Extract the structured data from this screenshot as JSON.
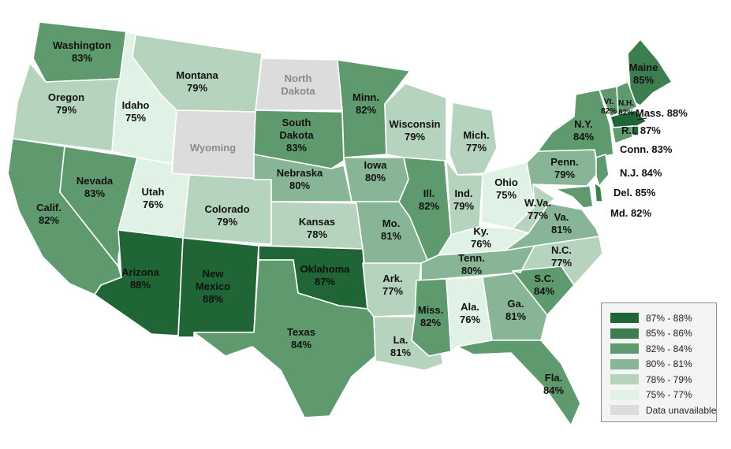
{
  "colors": {
    "c87_88": "#1f6535",
    "c85_86": "#3c7e4f",
    "c82_84": "#5f9a6e",
    "c80_81": "#88b595",
    "c78_79": "#b6d3bd",
    "c75_77": "#e0f1e6",
    "na": "#dcdcdc"
  },
  "legend": [
    {
      "label": "87% - 88%",
      "color": "#1f6535"
    },
    {
      "label": "85% - 86%",
      "color": "#3c7e4f"
    },
    {
      "label": "82% - 84%",
      "color": "#5f9a6e"
    },
    {
      "label": "80% - 81%",
      "color": "#88b595"
    },
    {
      "label": "78% - 79%",
      "color": "#b6d3bd"
    },
    {
      "label": "75% - 77%",
      "color": "#e0f1e6"
    },
    {
      "label": "Data unavailable",
      "color": "#dcdcdc"
    }
  ],
  "states": {
    "wa": {
      "name": "Washington",
      "value": "83%"
    },
    "or": {
      "name": "Oregon",
      "value": "79%"
    },
    "ca": {
      "name": "Calif.",
      "value": "82%"
    },
    "nv": {
      "name": "Nevada",
      "value": "83%"
    },
    "id": {
      "name": "Idaho",
      "value": "75%"
    },
    "mt": {
      "name": "Montana",
      "value": "79%"
    },
    "wy": {
      "name": "Wyoming",
      "value": ""
    },
    "ut": {
      "name": "Utah",
      "value": "76%"
    },
    "co": {
      "name": "Colorado",
      "value": "79%"
    },
    "az": {
      "name": "Arizona",
      "value": "88%"
    },
    "nm": {
      "name": "New Mexico",
      "name1": "New",
      "name2": "Mexico",
      "value": "88%"
    },
    "nd": {
      "name": "North Dakota",
      "name1": "North",
      "name2": "Dakota",
      "value": ""
    },
    "sd": {
      "name": "South Dakota",
      "name1": "South",
      "name2": "Dakota",
      "value": "83%"
    },
    "ne": {
      "name": "Nebraska",
      "value": "80%"
    },
    "ks": {
      "name": "Kansas",
      "value": "78%"
    },
    "ok": {
      "name": "Oklahoma",
      "value": "87%"
    },
    "tx": {
      "name": "Texas",
      "value": "84%"
    },
    "mn": {
      "name": "Minn.",
      "value": "82%"
    },
    "ia": {
      "name": "Iowa",
      "value": "80%"
    },
    "mo": {
      "name": "Mo.",
      "value": "81%"
    },
    "ar": {
      "name": "Ark.",
      "value": "77%"
    },
    "la": {
      "name": "La.",
      "value": "81%"
    },
    "wi": {
      "name": "Wisconsin",
      "value": "79%"
    },
    "il": {
      "name": "Ill.",
      "value": "82%"
    },
    "mi": {
      "name": "Mich.",
      "value": "77%"
    },
    "in": {
      "name": "Ind.",
      "value": "79%"
    },
    "oh": {
      "name": "Ohio",
      "value": "75%"
    },
    "ky": {
      "name": "Ky.",
      "value": "76%"
    },
    "tn": {
      "name": "Tenn.",
      "value": "80%"
    },
    "ms": {
      "name": "Miss.",
      "value": "82%"
    },
    "al": {
      "name": "Ala.",
      "value": "76%"
    },
    "ga": {
      "name": "Ga.",
      "value": "81%"
    },
    "fl": {
      "name": "Fla.",
      "value": "84%"
    },
    "sc": {
      "name": "S.C.",
      "value": "84%"
    },
    "nc": {
      "name": "N.C.",
      "value": "77%"
    },
    "va": {
      "name": "Va.",
      "value": "81%"
    },
    "wv": {
      "name": "W.Va.",
      "value": "77%"
    },
    "pa": {
      "name": "Penn.",
      "value": "79%"
    },
    "ny": {
      "name": "N.Y.",
      "value": "84%"
    },
    "me": {
      "name": "Maine",
      "value": "85%"
    },
    "vt": {
      "name": "Vt.",
      "value": "82%"
    },
    "nh": {
      "name": "N.H.",
      "value": "82%"
    },
    "ma": {
      "label": "Mass. 88%"
    },
    "ri": {
      "label": "R.I. 87%"
    },
    "ct": {
      "label": "Conn. 83%"
    },
    "nj": {
      "label": "N.J. 84%"
    },
    "de": {
      "label": "Del. 85%"
    },
    "md": {
      "label": "Md. 82%"
    }
  }
}
